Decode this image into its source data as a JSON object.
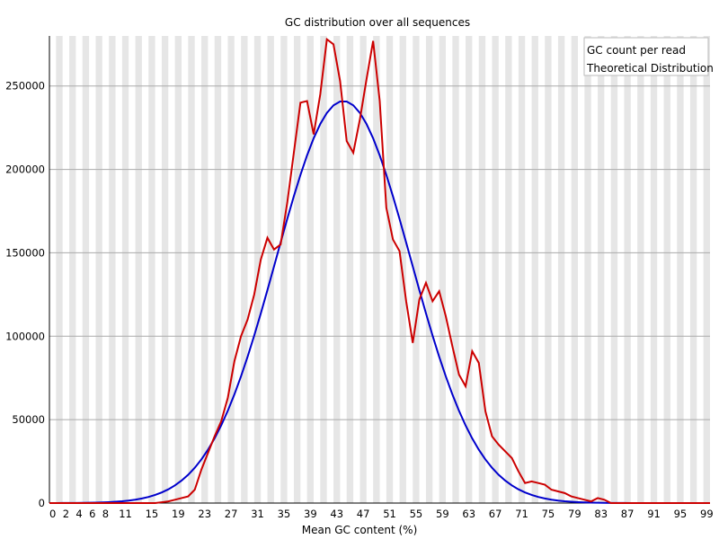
{
  "chart_data": {
    "type": "line",
    "title": "GC distribution over all sequences",
    "xlabel": "Mean GC content (%)",
    "ylabel": "",
    "xlim": [
      0,
      100
    ],
    "ylim": [
      0,
      280000
    ],
    "grid": true,
    "legend_position": "top-right",
    "x_tick_labels": [
      "0",
      "2",
      "4",
      "6",
      "8",
      "11",
      "15",
      "19",
      "23",
      "27",
      "31",
      "35",
      "39",
      "43",
      "47",
      "51",
      "55",
      "59",
      "63",
      "67",
      "71",
      "75",
      "79",
      "83",
      "87",
      "91",
      "95",
      "99"
    ],
    "y_tick_labels": [
      "0",
      "50000",
      "100000",
      "150000",
      "200000",
      "250000"
    ],
    "y_ticks": [
      0,
      50000,
      100000,
      150000,
      200000,
      250000
    ],
    "colors": {
      "gc_count": "#cc0000",
      "theoretical": "#0000cc",
      "band": "#e6e6e6",
      "gridline": "#aaaaaa",
      "axis": "#000000"
    },
    "series": [
      {
        "name": "GC count per read",
        "x": [
          0,
          1,
          2,
          3,
          4,
          5,
          6,
          7,
          8,
          9,
          10,
          11,
          12,
          13,
          14,
          15,
          16,
          17,
          18,
          19,
          20,
          21,
          22,
          23,
          24,
          25,
          26,
          27,
          28,
          29,
          30,
          31,
          32,
          33,
          34,
          35,
          36,
          37,
          38,
          39,
          40,
          41,
          42,
          43,
          44,
          45,
          46,
          47,
          48,
          49,
          50,
          51,
          52,
          53,
          54,
          55,
          56,
          57,
          58,
          59,
          60,
          61,
          62,
          63,
          64,
          65,
          66,
          67,
          68,
          69,
          70,
          71,
          72,
          73,
          74,
          75,
          76,
          77,
          78,
          79,
          80,
          81,
          82,
          83,
          84,
          85,
          86,
          87,
          88,
          89,
          90,
          91,
          92,
          93,
          94,
          95,
          96,
          97,
          98,
          99,
          100
        ],
        "values": [
          0,
          0,
          0,
          0,
          0,
          0,
          0,
          0,
          0,
          0,
          0,
          0,
          0,
          0,
          0,
          0,
          0,
          500,
          1000,
          2000,
          3000,
          4000,
          8000,
          20000,
          30000,
          40000,
          49000,
          63000,
          85000,
          100000,
          110000,
          125000,
          146000,
          159000,
          152000,
          155000,
          180000,
          210000,
          240000,
          241000,
          221000,
          245000,
          278000,
          275000,
          253000,
          217000,
          210000,
          230000,
          254000,
          277000,
          241000,
          177000,
          158000,
          151000,
          121000,
          96000,
          122000,
          132000,
          121000,
          127000,
          112000,
          94000,
          77000,
          70000,
          91000,
          84000,
          55000,
          40000,
          35000,
          31000,
          27000,
          19000,
          12000,
          13000,
          12000,
          11000,
          8000,
          7000,
          6000,
          4000,
          3000,
          2000,
          1000,
          3000,
          2000,
          0,
          0,
          0,
          0,
          0,
          0,
          0,
          0,
          0,
          0,
          0,
          0,
          0,
          0,
          0,
          0
        ]
      },
      {
        "name": "Theoretical Distribution",
        "mean": 44.5,
        "sd": 10.2,
        "peak": 241000
      }
    ]
  }
}
